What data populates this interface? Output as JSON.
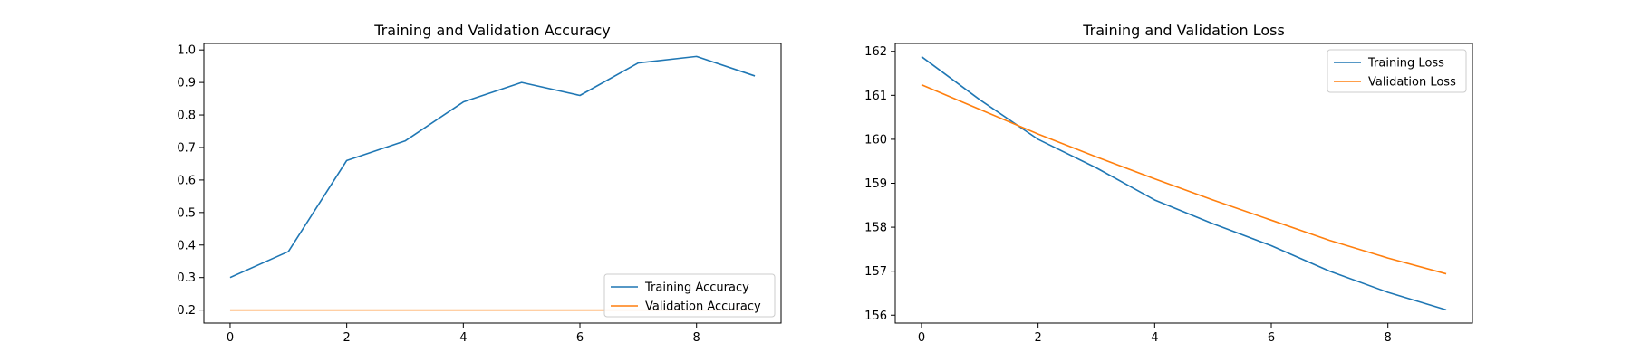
{
  "colors": {
    "training": "#1f77b4",
    "validation": "#ff7f0e"
  },
  "chart_data": [
    {
      "type": "line",
      "title": "Training and Validation Accuracy",
      "xlabel": "",
      "ylabel": "",
      "xlim": [
        -0.45,
        9.45
      ],
      "ylim": [
        0.16,
        1.02
      ],
      "x_ticks": [
        0,
        2,
        4,
        6,
        8
      ],
      "y_ticks": [
        0.2,
        0.3,
        0.4,
        0.5,
        0.6,
        0.7,
        0.8,
        0.9,
        1.0
      ],
      "y_tick_labels": [
        "0.2",
        "0.3",
        "0.4",
        "0.5",
        "0.6",
        "0.7",
        "0.8",
        "0.9",
        "1.0"
      ],
      "grid": false,
      "legend_position": "lower right",
      "x": [
        0,
        1,
        2,
        3,
        4,
        5,
        6,
        7,
        8,
        9
      ],
      "series": [
        {
          "name": "Training Accuracy",
          "color": "#1f77b4",
          "values": [
            0.3,
            0.38,
            0.66,
            0.72,
            0.84,
            0.9,
            0.86,
            0.96,
            0.98,
            0.92
          ]
        },
        {
          "name": "Validation Accuracy",
          "color": "#ff7f0e",
          "values": [
            0.2,
            0.2,
            0.2,
            0.2,
            0.2,
            0.2,
            0.2,
            0.2,
            0.2,
            0.2
          ]
        }
      ]
    },
    {
      "type": "line",
      "title": "Training and Validation Loss",
      "xlabel": "",
      "ylabel": "",
      "xlim": [
        -0.45,
        9.45
      ],
      "ylim": [
        155.82,
        162.18
      ],
      "x_ticks": [
        0,
        2,
        4,
        6,
        8
      ],
      "y_ticks": [
        156,
        157,
        158,
        159,
        160,
        161,
        162
      ],
      "y_tick_labels": [
        "156",
        "157",
        "158",
        "159",
        "160",
        "161",
        "162"
      ],
      "grid": false,
      "legend_position": "upper right",
      "x": [
        0,
        1,
        2,
        3,
        4,
        5,
        6,
        7,
        8,
        9
      ],
      "series": [
        {
          "name": "Training Loss",
          "color": "#1f77b4",
          "values": [
            161.88,
            160.9,
            160.0,
            159.35,
            158.62,
            158.08,
            157.58,
            157.0,
            156.52,
            156.12
          ]
        },
        {
          "name": "Validation Loss",
          "color": "#ff7f0e",
          "values": [
            161.24,
            160.68,
            160.12,
            159.6,
            159.1,
            158.62,
            158.16,
            157.7,
            157.3,
            156.94
          ]
        }
      ]
    }
  ]
}
